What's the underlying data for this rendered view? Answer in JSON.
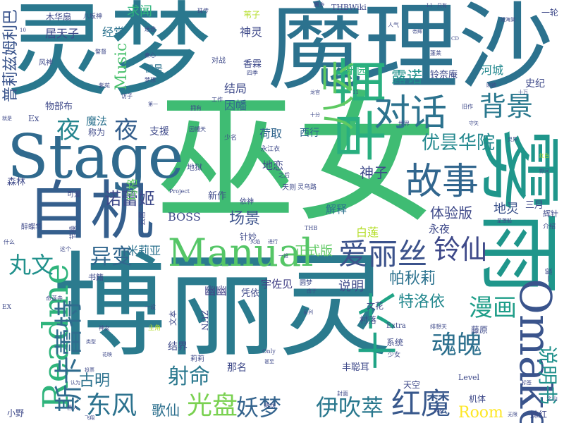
{
  "words": [
    {
      "text": "博丽灵",
      "color": "#2b7b8e"
    },
    {
      "text": "巫女",
      "color": "#3fbc73"
    },
    {
      "text": "灵梦",
      "color": "#2a788e"
    },
    {
      "text": "魔理沙",
      "color": "#2c728e"
    },
    {
      "text": "Stage",
      "color": "#306a8e"
    },
    {
      "text": "自机",
      "color": "#355f8d"
    },
    {
      "text": "Manual",
      "color": "#55c667"
    },
    {
      "text": "雾雨",
      "color": "#1f968b"
    },
    {
      "text": "早苗",
      "color": "#29af7f"
    },
    {
      "text": "Omake",
      "color": "#3a548c"
    },
    {
      "text": "Readme",
      "color": "#2fb47c"
    },
    {
      "text": "十六",
      "color": "#20a486"
    },
    {
      "text": "八云",
      "color": "#5ec962"
    },
    {
      "text": "对话",
      "color": "#2c728e"
    },
    {
      "text": "故事",
      "color": "#31668e"
    },
    {
      "text": "爱丽丝",
      "color": "#3b528b"
    },
    {
      "text": "斯卡蕾特",
      "color": "#2f6c8e"
    },
    {
      "text": "东风",
      "color": "#2c728e"
    },
    {
      "text": "光盘",
      "color": "#7ad151"
    },
    {
      "text": "妖梦",
      "color": "#33638d"
    },
    {
      "text": "伊吹萃",
      "color": "#2a788e"
    },
    {
      "text": "红魔",
      "color": "#38588c"
    },
    {
      "text": "魂魄",
      "color": "#2d708e"
    },
    {
      "text": "漫画",
      "color": "#1f9e89"
    },
    {
      "text": "铃仙",
      "color": "#3e4989"
    },
    {
      "text": "夜",
      "color": "#25858e"
    },
    {
      "text": "夜",
      "color": "#355f8d"
    },
    {
      "text": "背景",
      "color": "#2a788e"
    },
    {
      "text": "丸文",
      "color": "#21918c"
    },
    {
      "text": "异变",
      "color": "#31668e"
    },
    {
      "text": "射命",
      "color": "#2a788e"
    },
    {
      "text": "优昙华院",
      "color": "#23888e"
    },
    {
      "text": "诺蕾姬",
      "color": "#3e4989"
    },
    {
      "text": "说明书",
      "color": "#21918c"
    },
    {
      "text": "帕秋莉",
      "color": "#2c728e"
    },
    {
      "text": "特洛依",
      "color": "#23888e"
    },
    {
      "text": "露诺",
      "color": "#21918c"
    },
    {
      "text": "普莉兹姆利巴",
      "color": "#3a548c"
    },
    {
      "text": "Room",
      "color": "#fde725"
    },
    {
      "text": "Music",
      "color": "#4ac16d"
    },
    {
      "text": "古明",
      "color": "#2c728e"
    },
    {
      "text": "歌仙",
      "color": "#2d708e"
    },
    {
      "text": "场景",
      "color": "#3b528b"
    },
    {
      "text": "神子",
      "color": "#3e4989"
    },
    {
      "text": "体验版",
      "color": "#3e4989"
    },
    {
      "text": "地灵",
      "color": "#3b528b"
    },
    {
      "text": "正式版",
      "color": "#5ec962"
    },
    {
      "text": "幽幽",
      "color": "#424086"
    },
    {
      "text": "说明",
      "color": "#3e4989"
    },
    {
      "text": "宇佐见",
      "color": "#424086"
    },
    {
      "text": "BOSS",
      "color": "#3e4989"
    },
    {
      "text": "米莉亚",
      "color": "#2c728e"
    },
    {
      "text": "玛格",
      "color": "#5ec962"
    },
    {
      "text": "求闻",
      "color": "#2fb47c"
    },
    {
      "text": "经常",
      "color": "#2c728e"
    },
    {
      "text": "神灵",
      "color": "#3e4989"
    },
    {
      "text": "乐园",
      "color": "#2fb47c"
    },
    {
      "text": "因幡",
      "color": "#31668e"
    },
    {
      "text": "结局",
      "color": "#3e4989"
    },
    {
      "text": "荷取",
      "color": "#31668e"
    },
    {
      "text": "西行",
      "color": "#31668e"
    },
    {
      "text": "魔法",
      "color": "#2c728e"
    },
    {
      "text": "支援",
      "color": "#3e4989"
    },
    {
      "text": "解释",
      "color": "#2c728e"
    },
    {
      "text": "地恋",
      "color": "#3e4989"
    },
    {
      "text": "白莲",
      "color": "#b5de2b"
    },
    {
      "text": "永夜",
      "color": "#3e4989"
    },
    {
      "text": "三月",
      "color": "#3e4989"
    },
    {
      "text": "河城",
      "color": "#23888e"
    },
    {
      "text": "史纪",
      "color": "#3e4989"
    },
    {
      "text": "居天子",
      "color": "#3e4989"
    },
    {
      "text": "铃奈庵",
      "color": "#3e4989"
    },
    {
      "text": "香霖",
      "color": "#3e4989"
    },
    {
      "text": "物部布",
      "color": "#3e4989"
    },
    {
      "text": "但是",
      "color": "#2c728e"
    },
    {
      "text": "新作",
      "color": "#3e4989"
    },
    {
      "text": "针妙",
      "color": "#3e4989"
    },
    {
      "text": "凭依",
      "color": "#3e4989"
    },
    {
      "text": "文花",
      "color": "#3e4989"
    },
    {
      "text": "村落",
      "color": "#3e4989"
    },
    {
      "text": "系统",
      "color": "#3e4989"
    },
    {
      "text": "天空",
      "color": "#3e4989"
    },
    {
      "text": "藤原",
      "color": "#3e4989"
    },
    {
      "text": "丰聪耳",
      "color": "#3e4989"
    },
    {
      "text": "Extra",
      "color": "#3e4989"
    },
    {
      "text": "Level",
      "color": "#3e4989"
    },
    {
      "text": "机体",
      "color": "#3e4989"
    },
    {
      "text": "妹红",
      "color": "#3e4989"
    },
    {
      "text": "结界",
      "color": "#3e4989"
    },
    {
      "text": "那名",
      "color": "#3e4989"
    },
    {
      "text": "森林",
      "color": "#3e4989"
    },
    {
      "text": "小野",
      "color": "#3e4989"
    },
    {
      "text": "称为",
      "color": "#3e4989"
    },
    {
      "text": "Ex",
      "color": "#3e4989"
    },
    {
      "text": "木华扇",
      "color": "#3e4989"
    },
    {
      "text": "八坂神",
      "color": "#3e4989"
    },
    {
      "text": "THBWiki",
      "color": "#3e4989"
    },
    {
      "text": "一轮",
      "color": "#3e4989"
    },
    {
      "text": "苇子",
      "color": "#b5de2b"
    },
    {
      "text": "魔乡",
      "color": "#3e4989"
    },
    {
      "text": "对战",
      "color": "#3e4989"
    },
    {
      "text": "风神",
      "color": "#3e4989"
    },
    {
      "text": "辉针",
      "color": "#3e4989"
    },
    {
      "text": "介绍",
      "color": "#3e4989"
    },
    {
      "text": "ZUN",
      "color": "#3e4989"
    },
    {
      "text": "文本",
      "color": "#3e4989"
    },
    {
      "text": "莉莉",
      "color": "#3e4989"
    },
    {
      "text": "一般",
      "color": "#3e4989"
    },
    {
      "text": "地狱",
      "color": "#3e4989"
    },
    {
      "text": "天则",
      "color": "#3e4989"
    },
    {
      "text": "依神",
      "color": "#3e4989"
    },
    {
      "text": "灵乌路",
      "color": "#3e4989"
    },
    {
      "text": "可爱",
      "color": "#3e4989"
    },
    {
      "text": "云居",
      "color": "#3e4989"
    },
    {
      "text": "节操",
      "color": "#3e4989"
    },
    {
      "text": "醉蝶华",
      "color": "#3e4989"
    },
    {
      "text": "什么",
      "color": "#3e4989"
    },
    {
      "text": "这个",
      "color": "#3e4989"
    },
    {
      "text": "书籍",
      "color": "#3e4989"
    },
    {
      "text": "一设",
      "color": "#3e4989"
    },
    {
      "text": "命莲寺",
      "color": "#3e4989"
    },
    {
      "text": "主角",
      "color": "#b5de2b"
    },
    {
      "text": "神女",
      "color": "#3e4989"
    },
    {
      "text": "绯想天",
      "color": "#3e4989"
    },
    {
      "text": "少女",
      "color": "#3e4989"
    },
    {
      "text": "Only",
      "color": "#3e4989"
    },
    {
      "text": "封面",
      "color": "#3e4989"
    },
    {
      "text": "西人",
      "color": "#3e4989"
    },
    {
      "text": "降伏",
      "color": "#3e4989"
    },
    {
      "text": "之山",
      "color": "#3e4989"
    },
    {
      "text": "Project",
      "color": "#3e4989"
    },
    {
      "text": "THB",
      "color": "#3e4989"
    },
    {
      "text": "世界",
      "color": "#3e4989"
    },
    {
      "text": "火焰",
      "color": "#3e4989"
    },
    {
      "text": "少名",
      "color": "#3e4989"
    },
    {
      "text": "永江衣",
      "color": "#3e4989"
    },
    {
      "text": "之后",
      "color": "#3e4989"
    },
    {
      "text": "拥有",
      "color": "#3e4989"
    },
    {
      "text": "工作",
      "color": "#3e4989"
    },
    {
      "text": "因幡天",
      "color": "#3e4989"
    },
    {
      "text": "十分",
      "color": "#3e4989"
    },
    {
      "text": "旧作",
      "color": "#3e4989"
    },
    {
      "text": "守矢",
      "color": "#3e4989"
    },
    {
      "text": "灵异",
      "color": "#3e4989"
    },
    {
      "text": "野河",
      "color": "#3e4989"
    },
    {
      "text": "星莲船",
      "color": "#3e4989"
    },
    {
      "text": "红白",
      "color": "#b5de2b"
    },
    {
      "text": "四季",
      "color": "#3e4989"
    },
    {
      "text": "梦想",
      "color": "#3e4989"
    },
    {
      "text": "访子",
      "color": "#3e4989"
    },
    {
      "text": "紫苑",
      "color": "#3e4989"
    },
    {
      "text": "蓬莱",
      "color": "#3e4989"
    },
    {
      "text": "人气",
      "color": "#3e4989"
    },
    {
      "text": "只有",
      "color": "#3e4989"
    },
    {
      "text": "CD",
      "color": "#3e4989"
    },
    {
      "text": "刚欲",
      "color": "#3e4989"
    },
    {
      "text": "十万",
      "color": "#3e4989"
    },
    {
      "text": "帝辉",
      "color": "#3e4989"
    },
    {
      "text": "姬海棠",
      "color": "#3e4989"
    },
    {
      "text": "迷途",
      "color": "#3e4989"
    },
    {
      "text": "珠传",
      "color": "#3e4989"
    },
    {
      "text": "警督",
      "color": "#3e4989"
    },
    {
      "text": "秦心",
      "color": "#3e4989"
    },
    {
      "text": "第一",
      "color": "#3e4989"
    },
    {
      "text": "龙宫",
      "color": "#3e4989"
    },
    {
      "text": "系列",
      "color": "#3e4989"
    },
    {
      "text": "类型",
      "color": "#3e4989"
    },
    {
      "text": "认为",
      "color": "#3e4989"
    },
    {
      "text": "投票",
      "color": "#3e4989"
    },
    {
      "text": "花映",
      "color": "#3e4989"
    },
    {
      "text": "飞翔",
      "color": "#3e4989"
    },
    {
      "text": "甚至",
      "color": "#3e4989"
    },
    {
      "text": "进行",
      "color": "#3e4989"
    },
    {
      "text": "由于",
      "color": "#3e4989"
    },
    {
      "text": "标签",
      "color": "#3e4989"
    },
    {
      "text": "无限",
      "color": "#3e4989"
    },
    {
      "text": "Vas",
      "color": "#3e4989"
    },
    {
      "text": "一设",
      "color": "#3e4989"
    },
    {
      "text": "EX",
      "color": "#3e4989"
    },
    {
      "text": "圆梦",
      "color": "#3e4989"
    },
    {
      "text": "就是",
      "color": "#3e4989"
    },
    {
      "text": "10",
      "color": "#3e4989"
    },
    {
      "text": "L1",
      "color": "#3e4989"
    },
    {
      "text": "11",
      "color": "#3e4989"
    }
  ]
}
